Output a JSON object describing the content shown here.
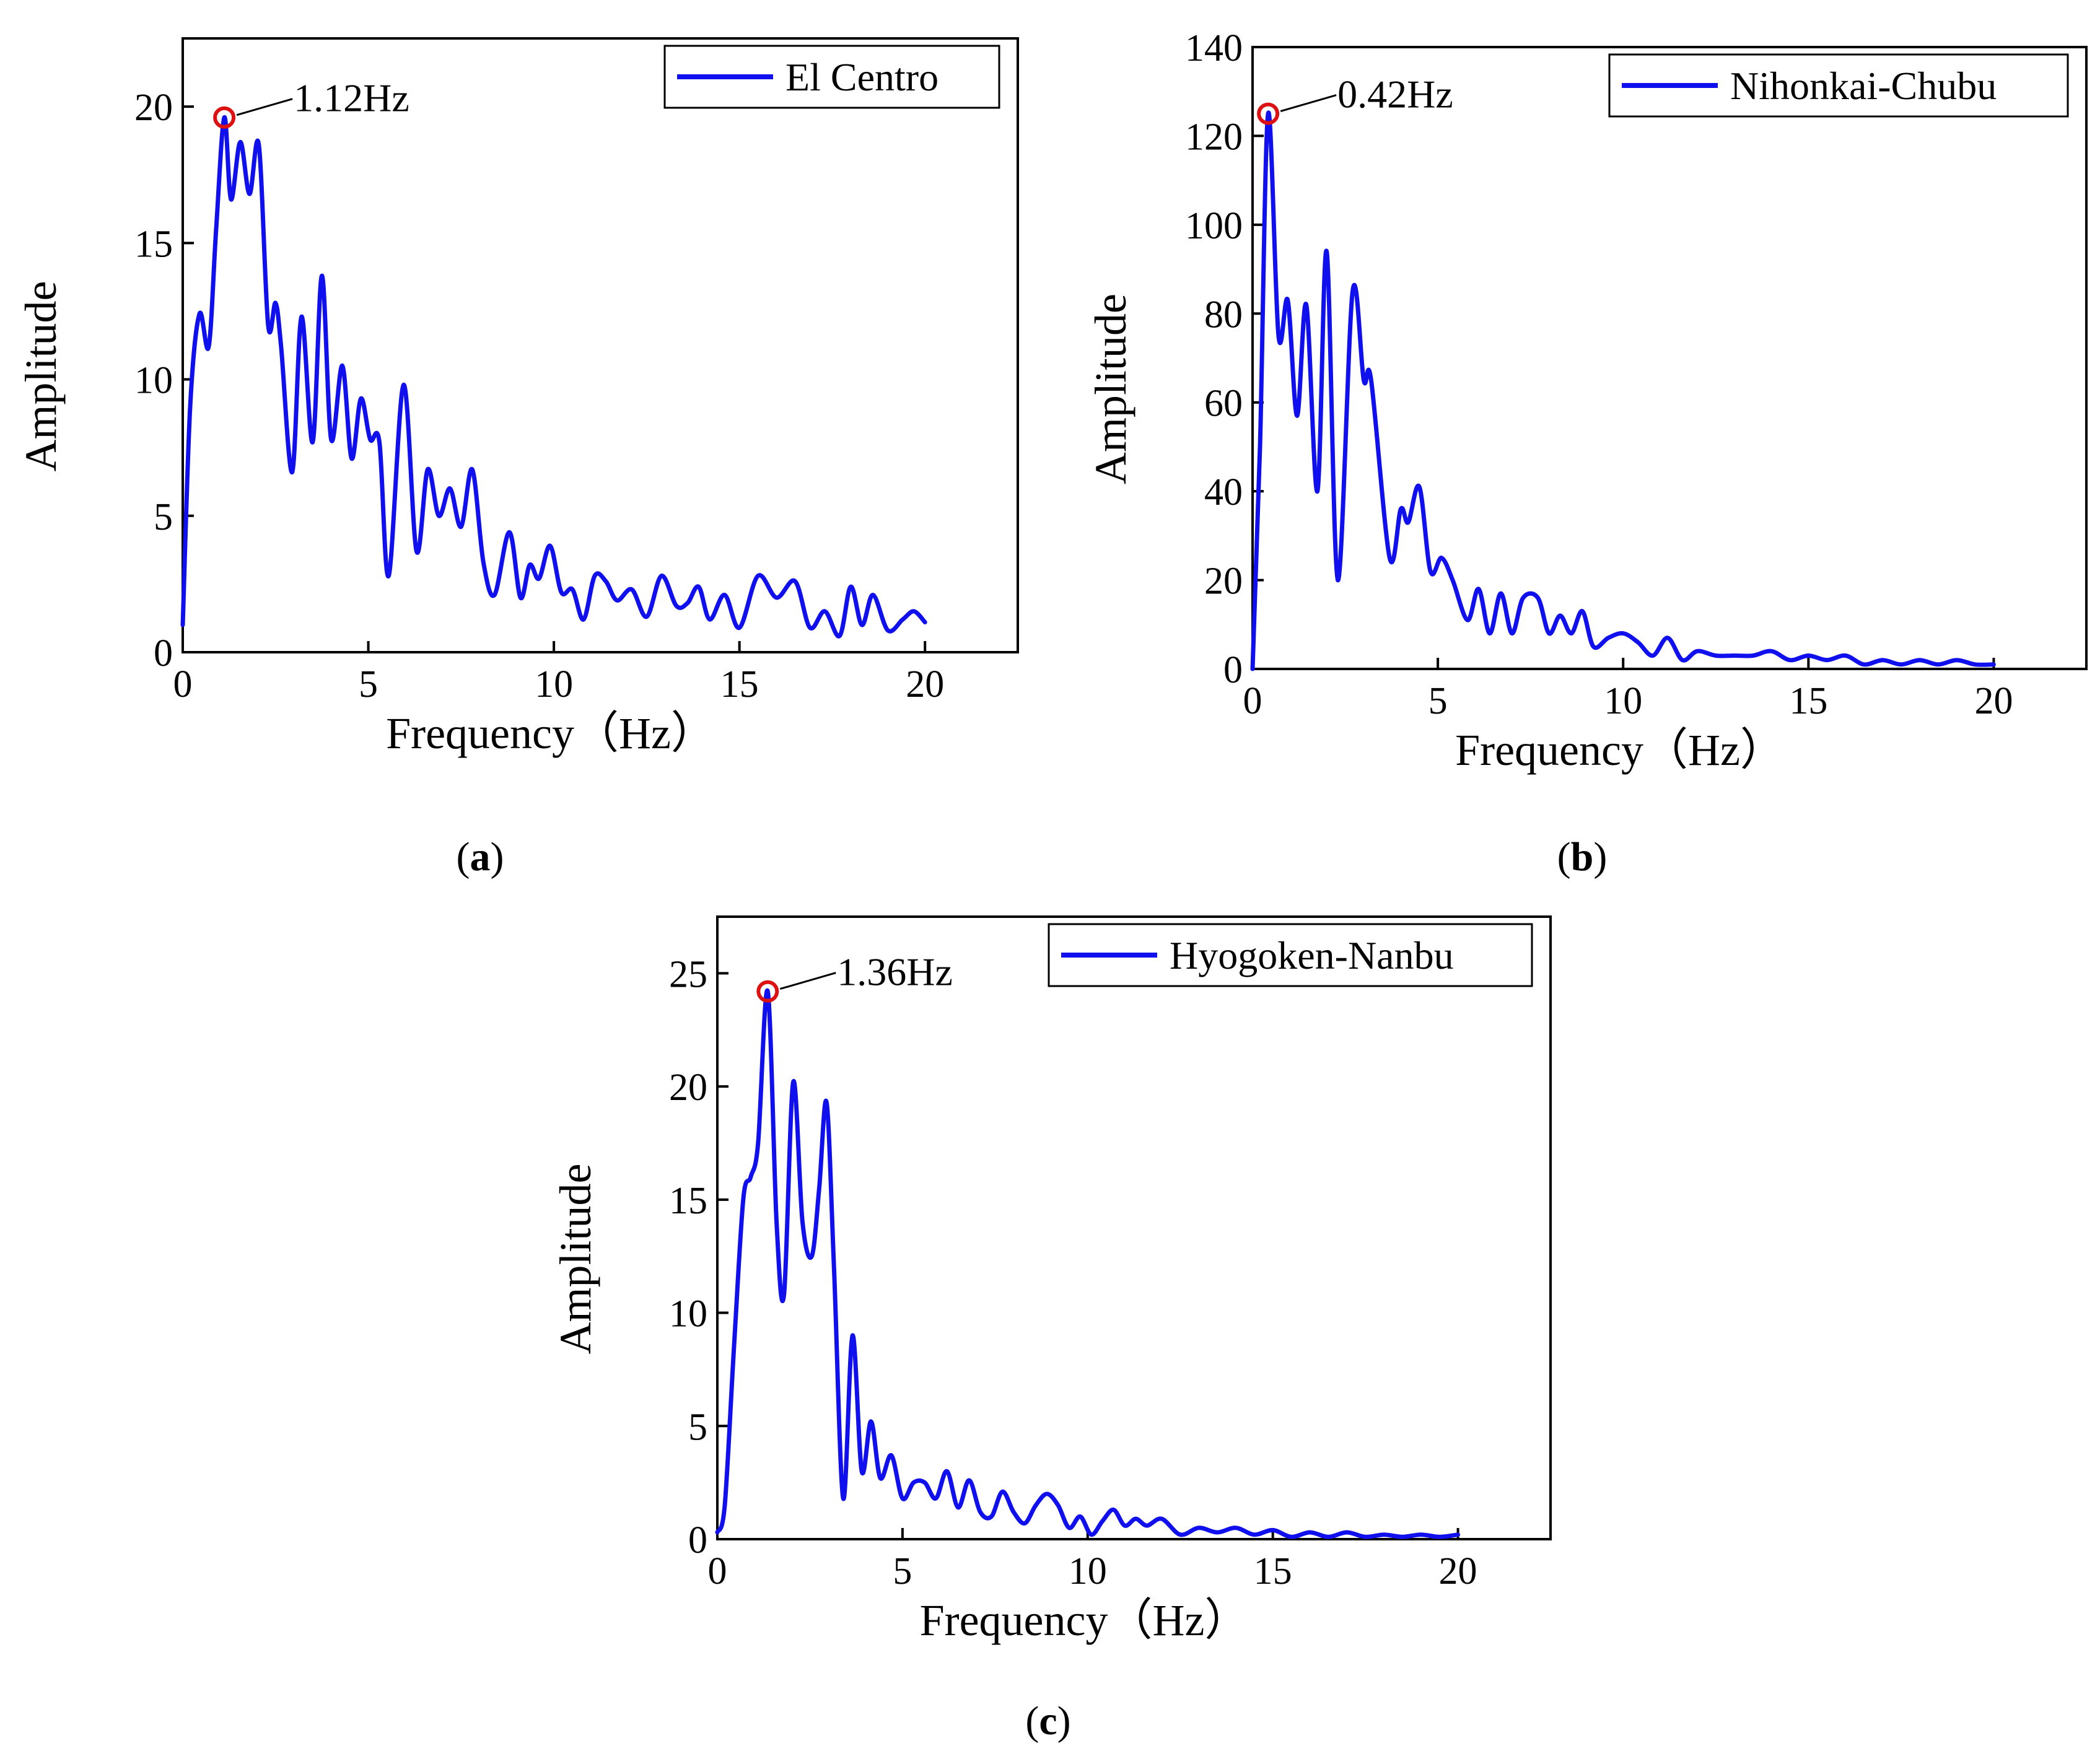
{
  "colors": {
    "series": "#1010ee",
    "peak": "#dd1111",
    "axis": "#000000"
  },
  "chart_data": [
    {
      "type": "line",
      "panel_label": "a",
      "xlabel": "Frequency（Hz）",
      "ylabel": "Amplitude",
      "xlim": [
        0,
        22.5
      ],
      "ylim": [
        0,
        22.5
      ],
      "xticks": [
        0,
        5,
        10,
        15,
        20
      ],
      "yticks": [
        0,
        5,
        10,
        15,
        20
      ],
      "legend": "El Centro",
      "legend_position": "top-right",
      "peak": {
        "x": 1.12,
        "y": 19.6,
        "label": "1.12Hz"
      },
      "series": [
        {
          "name": "El Centro",
          "x": [
            0,
            0.2,
            0.45,
            0.7,
            0.9,
            1.12,
            1.3,
            1.55,
            1.8,
            2.05,
            2.3,
            2.5,
            2.65,
            2.95,
            3.2,
            3.5,
            3.75,
            4.0,
            4.3,
            4.55,
            4.8,
            5.05,
            5.3,
            5.55,
            5.95,
            6.3,
            6.6,
            6.9,
            7.2,
            7.5,
            7.8,
            8.1,
            8.4,
            8.8,
            9.1,
            9.35,
            9.6,
            9.9,
            10.2,
            10.5,
            10.8,
            11.1,
            11.4,
            11.7,
            12.1,
            12.5,
            12.9,
            13.3,
            13.6,
            13.9,
            14.2,
            14.6,
            15.0,
            15.5,
            16.0,
            16.5,
            16.9,
            17.3,
            17.7,
            18.0,
            18.3,
            18.6,
            19.0,
            19.4,
            19.7,
            20.0
          ],
          "values": [
            1.0,
            9.0,
            12.4,
            11.2,
            15.5,
            19.6,
            16.6,
            18.7,
            16.8,
            18.6,
            12.0,
            12.8,
            11.2,
            6.6,
            12.3,
            7.7,
            13.8,
            7.8,
            10.5,
            7.1,
            9.3,
            7.8,
            7.7,
            2.8,
            9.8,
            3.7,
            6.7,
            5.0,
            6.0,
            4.6,
            6.7,
            3.3,
            2.1,
            4.4,
            2.0,
            3.2,
            2.7,
            3.9,
            2.2,
            2.3,
            1.2,
            2.8,
            2.6,
            1.9,
            2.3,
            1.3,
            2.8,
            1.7,
            1.8,
            2.4,
            1.2,
            2.1,
            0.9,
            2.8,
            2.0,
            2.6,
            0.9,
            1.5,
            0.6,
            2.4,
            1.0,
            2.1,
            0.8,
            1.2,
            1.5,
            1.1
          ]
        }
      ]
    },
    {
      "type": "line",
      "panel_label": "b",
      "xlabel": "Frequency（Hz）",
      "ylabel": "Amplitude",
      "xlim": [
        0,
        22.5
      ],
      "ylim": [
        0,
        140
      ],
      "xticks": [
        0,
        5,
        10,
        15,
        20
      ],
      "yticks": [
        0,
        20,
        40,
        60,
        80,
        100,
        120,
        140
      ],
      "legend": "Nihonkai-Chubu",
      "legend_position": "top-right",
      "peak": {
        "x": 0.42,
        "y": 125,
        "label": "0.42Hz"
      },
      "series": [
        {
          "name": "Nihonkai-Chubu",
          "x": [
            0,
            0.2,
            0.42,
            0.7,
            0.95,
            1.2,
            1.45,
            1.75,
            2.0,
            2.3,
            2.7,
            3.0,
            3.2,
            3.7,
            4.0,
            4.2,
            4.5,
            4.8,
            5.1,
            5.4,
            5.8,
            6.1,
            6.4,
            6.7,
            7.0,
            7.3,
            7.7,
            8.0,
            8.3,
            8.6,
            8.9,
            9.2,
            9.6,
            10.0,
            10.4,
            10.8,
            11.2,
            11.6,
            12.0,
            12.5,
            13.0,
            13.5,
            14.0,
            14.5,
            15.0,
            15.5,
            16.0,
            16.5,
            17.0,
            17.5,
            18.0,
            18.5,
            19.0,
            19.5,
            20.0
          ],
          "values": [
            0,
            50,
            125,
            75,
            83,
            57,
            82,
            40,
            94,
            20,
            85,
            65,
            65,
            25,
            36,
            33,
            41,
            22,
            25,
            20,
            11,
            18,
            8,
            17,
            8,
            16,
            16,
            8,
            12,
            8,
            13,
            5,
            7,
            8,
            6,
            3,
            7,
            2,
            4,
            3,
            3,
            3,
            4,
            2,
            3,
            2,
            3,
            1,
            2,
            1,
            2,
            1,
            2,
            1,
            1
          ]
        }
      ]
    },
    {
      "type": "line",
      "panel_label": "c",
      "xlabel": "Frequency（Hz）",
      "ylabel": "Amplitude",
      "xlim": [
        0,
        22.5
      ],
      "ylim": [
        0,
        27.5
      ],
      "xticks": [
        0,
        5,
        10,
        15,
        20
      ],
      "yticks": [
        0,
        5,
        10,
        15,
        20,
        25
      ],
      "legend": "Hyogoken-Nanbu",
      "legend_position": "top-right",
      "peak": {
        "x": 1.36,
        "y": 24.2,
        "label": "1.36Hz"
      },
      "series": [
        {
          "name": "Hyogoken-Nanbu",
          "x": [
            0,
            0.2,
            0.45,
            0.7,
            0.9,
            1.1,
            1.36,
            1.6,
            1.8,
            2.05,
            2.3,
            2.55,
            2.75,
            2.95,
            3.15,
            3.4,
            3.65,
            3.9,
            4.15,
            4.4,
            4.7,
            5.0,
            5.3,
            5.6,
            5.9,
            6.2,
            6.5,
            6.8,
            7.1,
            7.4,
            7.7,
            8.0,
            8.3,
            8.6,
            8.9,
            9.2,
            9.5,
            9.8,
            10.1,
            10.4,
            10.7,
            11.0,
            11.3,
            11.6,
            12.0,
            12.5,
            13.0,
            13.5,
            14.0,
            14.5,
            15.0,
            15.5,
            16.0,
            16.5,
            17.0,
            17.5,
            18.0,
            18.5,
            19.0,
            19.5,
            20.0
          ],
          "values": [
            0.3,
            1.5,
            8.5,
            15.0,
            16.0,
            17.5,
            24.2,
            14.0,
            10.8,
            20.2,
            14.0,
            12.5,
            15.5,
            19.3,
            12.0,
            1.8,
            9.0,
            3.0,
            5.2,
            2.7,
            3.7,
            1.8,
            2.5,
            2.5,
            1.8,
            3.0,
            1.4,
            2.6,
            1.2,
            1.0,
            2.1,
            1.2,
            0.7,
            1.5,
            2.0,
            1.5,
            0.5,
            1.0,
            0.2,
            0.8,
            1.3,
            0.6,
            0.9,
            0.6,
            0.9,
            0.2,
            0.5,
            0.3,
            0.5,
            0.2,
            0.4,
            0.1,
            0.3,
            0.1,
            0.3,
            0.1,
            0.2,
            0.1,
            0.2,
            0.1,
            0.2
          ]
        }
      ]
    }
  ]
}
